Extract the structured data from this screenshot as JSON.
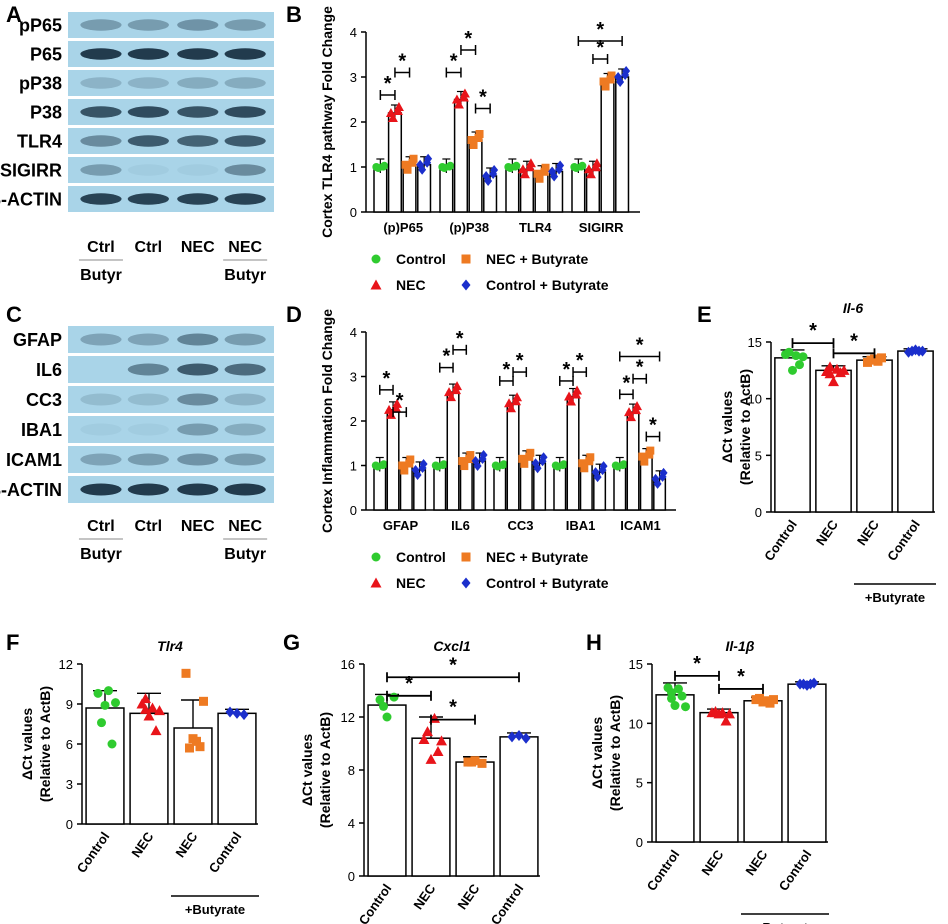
{
  "colors": {
    "control": "#2fcb2f",
    "nec": "#e8141a",
    "nec_butyrate": "#ee7a22",
    "control_butyrate": "#1b2fcc",
    "blot_bg": "#a9d4e8",
    "band": "#1a3345"
  },
  "panel_labels": {
    "A": "A",
    "B": "B",
    "C": "C",
    "D": "D",
    "E": "E",
    "F": "F",
    "G": "G",
    "H": "H"
  },
  "blot_A": {
    "bands": [
      "pP65",
      "P65",
      "pP38",
      "P38",
      "TLR4",
      "SIGIRR",
      "β-ACTIN"
    ],
    "lanes": [
      "Ctrl",
      "Ctrl",
      "NEC",
      "NEC"
    ],
    "butyr_labels": [
      "Butyr",
      "Butyr"
    ]
  },
  "blot_C": {
    "bands": [
      "GFAP",
      "IL6",
      "CC3",
      "IBA1",
      "ICAM1",
      "β-ACTIN"
    ],
    "lanes": [
      "Ctrl",
      "Ctrl",
      "NEC",
      "NEC"
    ],
    "butyr_labels": [
      "Butyr",
      "Butyr"
    ]
  },
  "legend": {
    "control": "Control",
    "nec": "NEC",
    "nec_butyrate": "NEC + Butyrate",
    "control_butyrate": "Control + Butyrate"
  },
  "chart_data": [
    {
      "id": "B",
      "type": "bar",
      "title": "",
      "ylabel": "Cortex TLR4 pathway Fold Change",
      "ylim": [
        0,
        4
      ],
      "yticks": [
        "0",
        "1",
        "2",
        "3",
        "4"
      ],
      "categories": [
        "(p)P65",
        "(p)P38",
        "TLR4",
        "SIGIRR"
      ],
      "series": [
        {
          "name": "Control",
          "values": [
            1.0,
            1.0,
            1.0,
            1.0
          ]
        },
        {
          "name": "NEC",
          "values": [
            2.2,
            2.5,
            0.95,
            0.95
          ]
        },
        {
          "name": "NEC + Butyrate",
          "values": [
            1.05,
            1.6,
            0.85,
            2.9
          ]
        },
        {
          "name": "Control + Butyrate",
          "values": [
            1.05,
            0.8,
            0.9,
            3.0
          ]
        }
      ],
      "significance": "*"
    },
    {
      "id": "D",
      "type": "bar",
      "title": "",
      "ylabel": "Cortex Inflammation Fold Change",
      "ylim": [
        0,
        4
      ],
      "yticks": [
        "0",
        "1",
        "2",
        "3",
        "4"
      ],
      "categories": [
        "GFAP",
        "IL6",
        "CC3",
        "IBA1",
        "ICAM1"
      ],
      "series": [
        {
          "name": "Control",
          "values": [
            1.0,
            1.0,
            1.0,
            1.0,
            1.0
          ]
        },
        {
          "name": "NEC",
          "values": [
            2.25,
            2.65,
            2.4,
            2.55,
            2.2
          ]
        },
        {
          "name": "NEC + Butyrate",
          "values": [
            1.0,
            1.1,
            1.15,
            1.05,
            1.2
          ]
        },
        {
          "name": "Control + Butyrate",
          "values": [
            0.9,
            1.1,
            1.05,
            0.85,
            0.7
          ]
        }
      ],
      "significance": "*"
    },
    {
      "id": "E",
      "type": "bar",
      "title": "Il-6",
      "ylabel": "ΔCt values (Relative to ActB)",
      "ylim": [
        0,
        15
      ],
      "yticks": [
        "0",
        "5",
        "10",
        "15"
      ],
      "categories": [
        "Control",
        "NEC",
        "NEC",
        "Control"
      ],
      "group_label": "+Butyrate",
      "values": [
        13.6,
        12.5,
        13.4,
        14.2
      ],
      "significance": "*"
    },
    {
      "id": "F",
      "type": "bar",
      "title": "Tlr4",
      "ylabel": "ΔCt values (Relative to ActB)",
      "ylim": [
        0,
        12
      ],
      "yticks": [
        "0",
        "3",
        "6",
        "9",
        "12"
      ],
      "categories": [
        "Control",
        "NEC",
        "NEC",
        "Control"
      ],
      "group_label": "+Butyrate",
      "values": [
        8.7,
        8.3,
        7.2,
        8.3
      ]
    },
    {
      "id": "G",
      "type": "bar",
      "title": "Cxcl1",
      "ylabel": "ΔCt values (Relative to ActB)",
      "ylim": [
        0,
        16
      ],
      "yticks": [
        "0",
        "4",
        "8",
        "12",
        "16"
      ],
      "categories": [
        "Control",
        "NEC",
        "NEC",
        "Control"
      ],
      "group_label": "+Butyrate",
      "values": [
        12.9,
        10.4,
        8.6,
        10.5
      ],
      "significance": "*"
    },
    {
      "id": "H",
      "type": "bar",
      "title": "Il-1β",
      "ylabel": "ΔCt values (Relative to ActB)",
      "ylim": [
        0,
        15
      ],
      "yticks": [
        "0",
        "5",
        "10",
        "15"
      ],
      "categories": [
        "Control",
        "NEC",
        "NEC",
        "Control"
      ],
      "group_label": "+Butyrate",
      "values": [
        12.4,
        10.9,
        11.9,
        13.3
      ],
      "significance": "*"
    }
  ]
}
